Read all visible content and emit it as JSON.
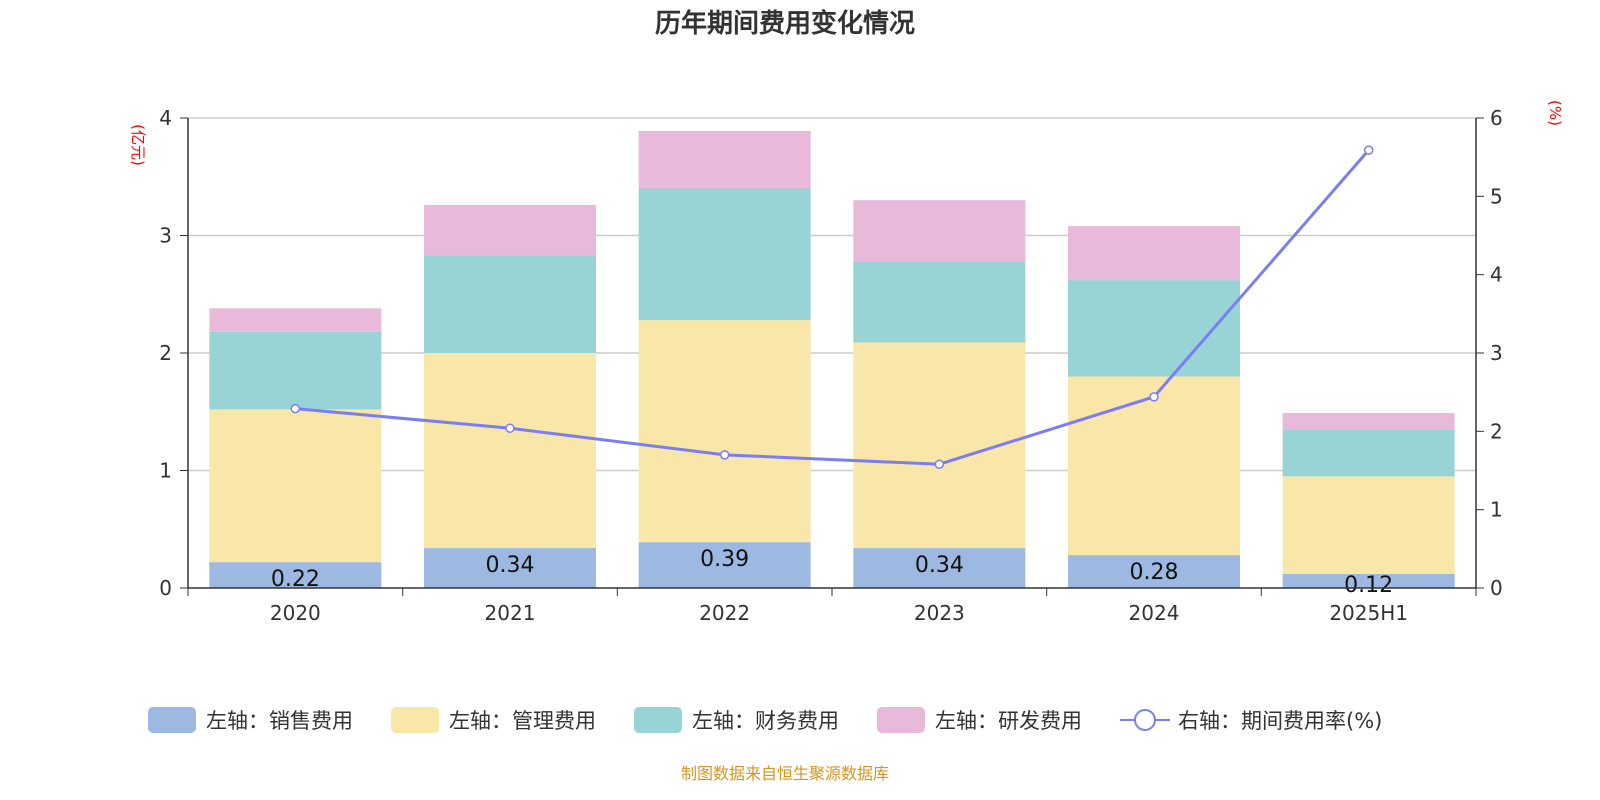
{
  "chart_data": {
    "type": "bar",
    "title": "历年期间费用变化情况",
    "categories": [
      "2020",
      "2021",
      "2022",
      "2023",
      "2024",
      "2025H1"
    ],
    "left_axis": {
      "unit": "(亿元)",
      "ylim": [
        0,
        4
      ],
      "ticks": [
        "0",
        "1",
        "2",
        "3",
        "4"
      ]
    },
    "right_axis": {
      "unit": "(%)",
      "ylim": [
        0,
        6
      ],
      "ticks": [
        "0",
        "1",
        "2",
        "3",
        "4",
        "5",
        "6"
      ]
    },
    "grid": true,
    "legend_position": "bottom",
    "series": [
      {
        "name": "左轴：销售费用",
        "type": "bar",
        "stack": true,
        "color": "#9db8e1",
        "values": [
          0.22,
          0.34,
          0.39,
          0.34,
          0.28,
          0.12
        ],
        "labels": [
          "0.22",
          "0.34",
          "0.39",
          "0.34",
          "0.28",
          "0.12"
        ]
      },
      {
        "name": "左轴：管理费用",
        "type": "bar",
        "stack": true,
        "color": "#f8e7a9",
        "values": [
          1.3,
          1.66,
          1.89,
          1.75,
          1.52,
          0.83
        ]
      },
      {
        "name": "左轴：财务费用",
        "type": "bar",
        "stack": true,
        "color": "#98d4d5",
        "values": [
          0.66,
          0.83,
          1.12,
          0.69,
          0.82,
          0.4
        ]
      },
      {
        "name": "左轴：研发费用",
        "type": "bar",
        "stack": true,
        "color": "#e8b9d9",
        "values": [
          0.2,
          0.43,
          0.49,
          0.52,
          0.46,
          0.14
        ]
      },
      {
        "name": "右轴：期间费用率(%)",
        "type": "line",
        "axis": "right",
        "color": "#7b7ef0",
        "values": [
          2.29,
          2.04,
          1.7,
          1.58,
          2.44,
          5.59
        ]
      }
    ]
  },
  "footer": "制图数据来自恒生聚源数据库"
}
